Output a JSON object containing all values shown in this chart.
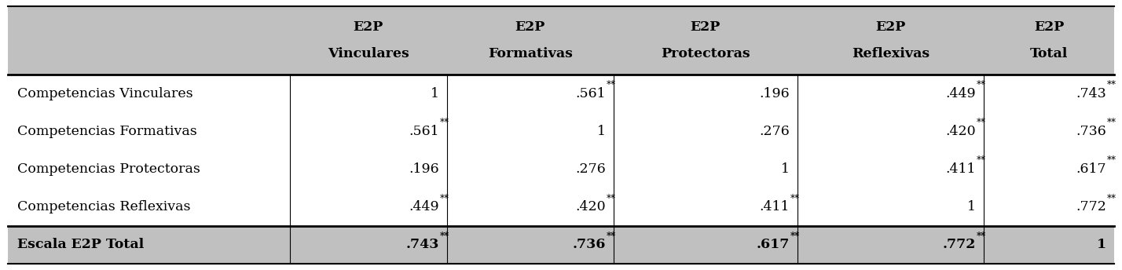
{
  "col_headers": [
    [
      "E2P",
      "Vinculares"
    ],
    [
      "E2P",
      "Formativas"
    ],
    [
      "E2P",
      "Protectoras"
    ],
    [
      "E2P",
      "Reflexivas"
    ],
    [
      "E2P",
      "Total"
    ]
  ],
  "row_labels": [
    "Competencias Vinculares",
    "Competencias Formativas",
    "Competencias Protectoras",
    "Competencias Reflexivas",
    "Escala E2P Total"
  ],
  "cell_values": [
    [
      "1",
      ".561",
      ".196",
      ".449",
      ".743"
    ],
    [
      ".561",
      "1",
      ".276",
      ".420",
      ".736"
    ],
    [
      ".196",
      ".276",
      "1",
      ".411",
      ".617"
    ],
    [
      ".449",
      ".420",
      ".411",
      "1",
      ".772"
    ],
    [
      ".743",
      ".736",
      ".617",
      ".772",
      "1"
    ]
  ],
  "cell_stars": [
    [
      "",
      "**",
      "",
      "**",
      "**"
    ],
    [
      "**",
      "",
      "",
      "**",
      "**"
    ],
    [
      "",
      "",
      "",
      "**",
      "**"
    ],
    [
      "**",
      "**",
      "**",
      "",
      "**"
    ],
    [
      "**",
      "**",
      "**",
      "**",
      ""
    ]
  ],
  "header_bg": "#c0c0c0",
  "last_row_bg": "#c0c0c0",
  "body_bg": "#ffffff",
  "text_color": "#000000",
  "border_color": "#000000",
  "font_size": 12.5,
  "header_font_size": 12.5,
  "figsize": [
    14.28,
    3.44
  ],
  "dpi": 100
}
